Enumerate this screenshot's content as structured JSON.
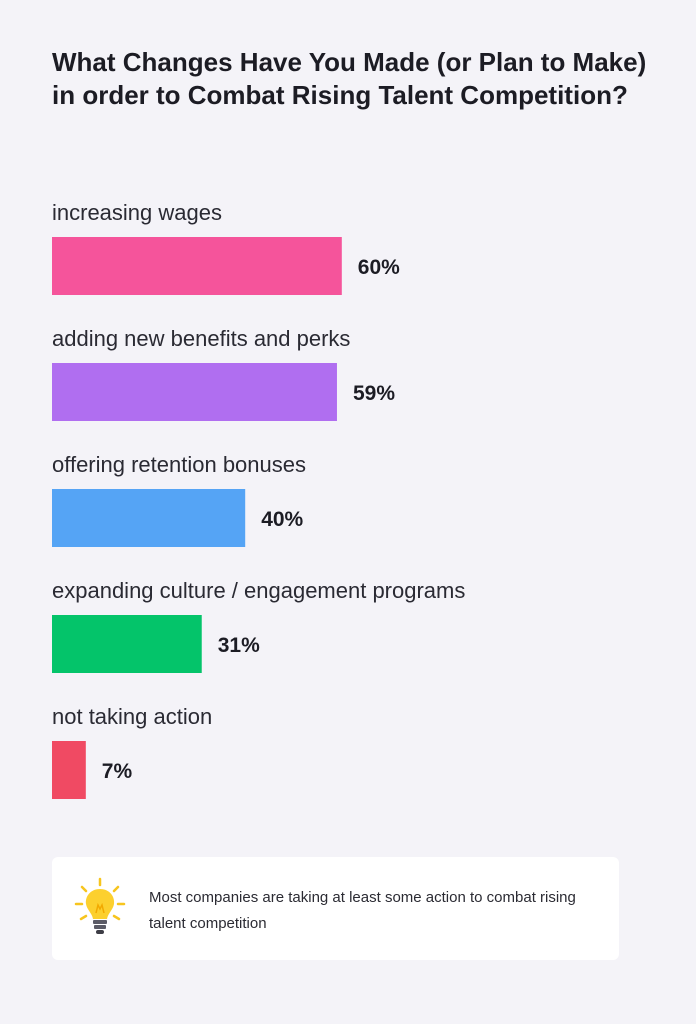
{
  "title": "What Changes Have You Made (or Plan to Make) in order to Combat Rising Talent Competition?",
  "chart_data": {
    "type": "bar",
    "orientation": "horizontal",
    "title": "What Changes Have You Made (or Plan to Make) in order to Combat Rising Talent Competition?",
    "categories": [
      "increasing wages",
      "adding new benefits and perks",
      "offering retention bonuses",
      "expanding culture / engagement programs",
      "not taking action"
    ],
    "values": [
      60,
      59,
      40,
      31,
      7
    ],
    "value_labels": [
      "60%",
      "59%",
      "40%",
      "31%",
      "7%"
    ],
    "colors": [
      "#f5549b",
      "#b06ef0",
      "#55a4f5",
      "#04c46a",
      "#f04a63"
    ],
    "unit": "%",
    "xlim": [
      0,
      100
    ],
    "grid": false,
    "legend": "none"
  },
  "note": {
    "icon": "lightbulb-icon",
    "text": "Most companies are taking at least some action to combat rising talent competition"
  }
}
